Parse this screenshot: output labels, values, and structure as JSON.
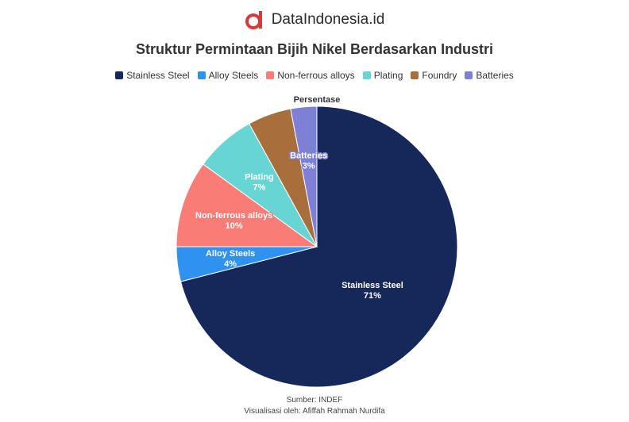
{
  "brand": {
    "name": "DataIndonesia.id",
    "logo_letter": "d"
  },
  "chart_data": {
    "type": "pie",
    "title": "Struktur Permintaan Bijih Nikel Berdasarkan Industri",
    "series_title": "Persentase",
    "legend_position": "top",
    "slices": [
      {
        "label": "Stainless Steel",
        "value": 71,
        "display": "71%",
        "color": "#16285a"
      },
      {
        "label": "Alloy Steels",
        "value": 4,
        "display": "4%",
        "color": "#2f91f0"
      },
      {
        "label": "Non-ferrous alloys",
        "value": 10,
        "display": "10%",
        "color": "#f97c77"
      },
      {
        "label": "Plating",
        "value": 7,
        "display": "7%",
        "color": "#67d5d4"
      },
      {
        "label": "Foundry",
        "value": 5,
        "display": "",
        "color": "#a86f3d"
      },
      {
        "label": "Batteries",
        "value": 3,
        "display": "3%",
        "color": "#7d80d4"
      }
    ]
  },
  "footer": {
    "source": "Sumber: INDEF",
    "credit": "Visualisasi oleh: Afiffah Rahmah Nurdifa"
  }
}
